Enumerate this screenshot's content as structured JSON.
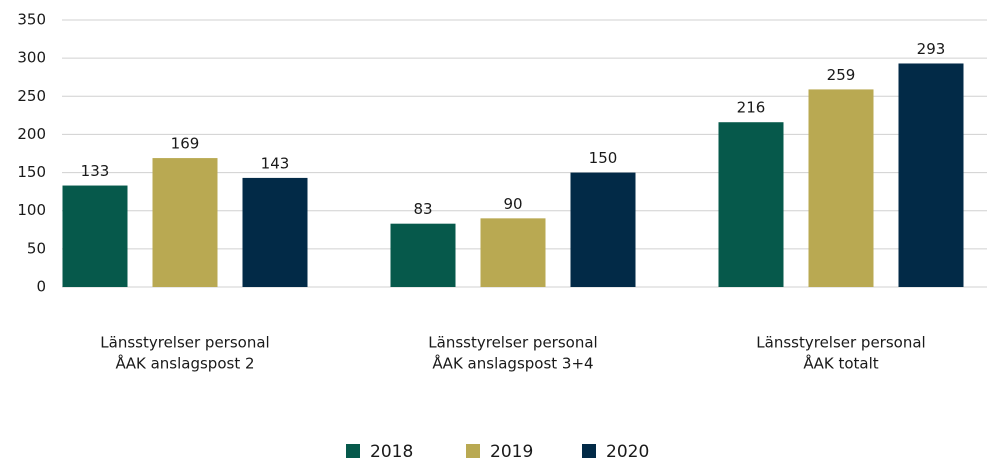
{
  "chart_data": {
    "type": "bar",
    "categories": [
      [
        "Länsstyrelser personal",
        "ÅAK anslagspost 2"
      ],
      [
        "Länsstyrelser personal",
        "ÅAK anslagspost 3+4"
      ],
      [
        "Länsstyrelser personal",
        "ÅAK totalt"
      ]
    ],
    "series": [
      {
        "name": "2018",
        "color": "#06594b",
        "values": [
          133,
          83,
          216
        ]
      },
      {
        "name": "2019",
        "color": "#b9a952",
        "values": [
          169,
          90,
          259
        ]
      },
      {
        "name": "2020",
        "color": "#022a47",
        "values": [
          143,
          150,
          293
        ]
      }
    ],
    "ylim": [
      0,
      350
    ],
    "yticks": [
      0,
      50,
      100,
      150,
      200,
      250,
      300,
      350
    ],
    "grid": true,
    "legend": "bottom"
  }
}
